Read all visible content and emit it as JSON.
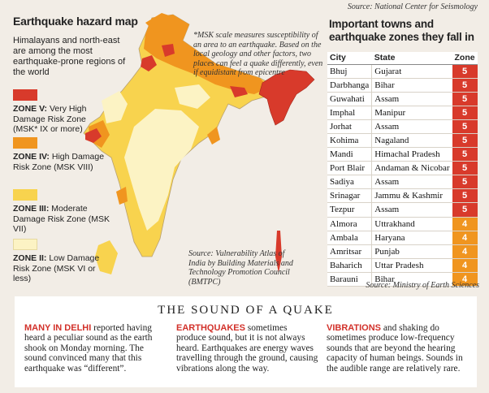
{
  "source_top": "Source: National Center for Seismology",
  "map": {
    "title": "Earthquake hazard map",
    "subtitle": "Himalayans and north-east are among the most earthquake-prone regions of the world",
    "note": "*MSK scale measures susceptibility of an area to an earthquake. Based on the local geology and other factors, two places can feel a quake differently, even if equidistant from epicentre",
    "source": "Source: Vulnerability Atlas of India by Building Materials and Technology Promotion Council (BMTPC)",
    "legend": [
      {
        "zone": "ZONE V:",
        "desc": "Very High Damage Risk Zone (MSK* IX or more)",
        "color": "#d83a2b"
      },
      {
        "zone": "ZONE IV:",
        "desc": "High Damage Risk Zone (MSK VIII)",
        "color": "#f0951f"
      },
      {
        "zone": "ZONE III:",
        "desc": "Moderate Damage Risk Zone (MSK VII)",
        "color": "#f8d34e"
      },
      {
        "zone": "ZONE II:",
        "desc": "Low Damage Risk Zone (MSK VI or less)",
        "color": "#fcf3c4"
      }
    ]
  },
  "table": {
    "title": "Important towns and earthquake zones they fall in",
    "headers": [
      "City",
      "State",
      "Zone"
    ],
    "rows": [
      {
        "city": "Bhuj",
        "state": "Gujarat",
        "zone": "5"
      },
      {
        "city": "Darbhanga",
        "state": "Bihar",
        "zone": "5"
      },
      {
        "city": "Guwahati",
        "state": "Assam",
        "zone": "5"
      },
      {
        "city": "Imphal",
        "state": "Manipur",
        "zone": "5"
      },
      {
        "city": "Jorhat",
        "state": "Assam",
        "zone": "5"
      },
      {
        "city": "Kohima",
        "state": "Nagaland",
        "zone": "5"
      },
      {
        "city": "Mandi",
        "state": "Himachal Pradesh",
        "zone": "5"
      },
      {
        "city": "Port Blair",
        "state": "Andaman & Nicobar",
        "zone": "5"
      },
      {
        "city": "Sadiya",
        "state": "Assam",
        "zone": "5"
      },
      {
        "city": "Srinagar",
        "state": "Jammu & Kashmir",
        "zone": "5"
      },
      {
        "city": "Tezpur",
        "state": "Assam",
        "zone": "5"
      },
      {
        "city": "Almora",
        "state": "Uttrakhand",
        "zone": "4"
      },
      {
        "city": "Ambala",
        "state": "Haryana",
        "zone": "4"
      },
      {
        "city": "Amritsar",
        "state": "Punjab",
        "zone": "4"
      },
      {
        "city": "Baharich",
        "state": "Uttar Pradesh",
        "zone": "4"
      },
      {
        "city": "Barauni",
        "state": "Bihar",
        "zone": "4"
      }
    ],
    "zone_colors": {
      "5": "#d83a2b",
      "4": "#f0951f"
    },
    "source": "Source: Ministry of Earth Sciences"
  },
  "sound": {
    "title": "THE SOUND OF A QUAKE",
    "columns": [
      {
        "lead": "MANY IN DELHI",
        "text": " reported having heard a peculiar sound as the earth shook on Monday morning. The sound convinced many that this earthquake was “different”."
      },
      {
        "lead": "EARTHQUAKES",
        "text": " sometimes produce sound, but it is not always heard. Earthquakes are energy waves travelling through the ground, causing vibrations along the way."
      },
      {
        "lead": "VIBRATIONS",
        "text": " and shaking do sometimes produce low-frequency sounds that are beyond the hearing capacity of human beings. Sounds in the audible range are relatively rare."
      }
    ]
  }
}
